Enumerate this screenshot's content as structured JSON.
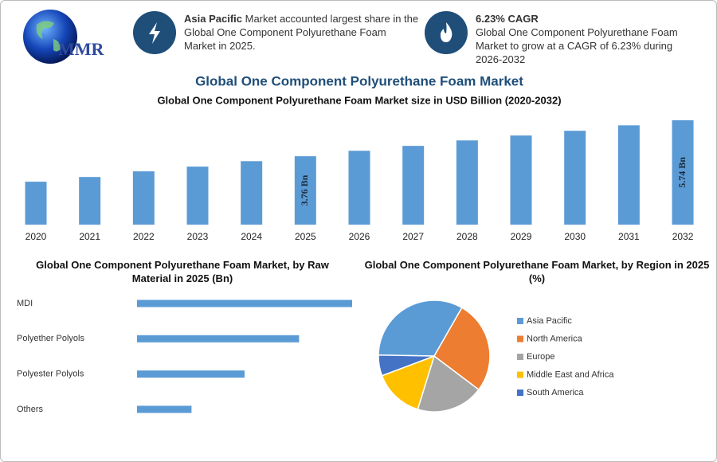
{
  "header": {
    "logo": "MMR",
    "highlight1": {
      "bold": "Asia Pacific",
      "text": " Market accounted largest share in the Global One Component Polyurethane Foam Market in 2025."
    },
    "highlight2": {
      "title": "6.23% CAGR",
      "text": "Global One Component Polyurethane Foam Market to grow at a CAGR of 6.23% during 2026-2032"
    }
  },
  "title": "Global One Component Polyurethane Foam Market",
  "chart_data": [
    {
      "type": "bar",
      "title": "Global One Component Polyurethane Foam Market size in USD Billion (2020-2032)",
      "categories": [
        "2020",
        "2021",
        "2022",
        "2023",
        "2024",
        "2025",
        "2026",
        "2027",
        "2028",
        "2029",
        "2030",
        "2031",
        "2032"
      ],
      "values": [
        2.36,
        2.62,
        2.93,
        3.19,
        3.49,
        3.76,
        4.06,
        4.33,
        4.63,
        4.9,
        5.16,
        5.46,
        5.74
      ],
      "value_labels": [
        null,
        null,
        null,
        null,
        null,
        "3.76 Bn",
        null,
        null,
        null,
        null,
        null,
        null,
        "5.74 Bn"
      ],
      "color": "#5b9bd5",
      "ylim": [
        0,
        6
      ]
    },
    {
      "type": "barh",
      "title": "Global One Component Polyurethane Foam Market, by Raw Material in 2025 (Bn)",
      "categories": [
        "MDI",
        "Polyether Polyols",
        "Polyester Polyols",
        "Others"
      ],
      "values": [
        1.5,
        1.13,
        0.75,
        0.38
      ],
      "color": "#5b9bd5",
      "xlim": [
        0,
        1.5
      ]
    },
    {
      "type": "pie",
      "title": "Global One Component Polyurethane Foam Market, by Region in 2025 (%)",
      "categories": [
        "Asia Pacific",
        "North America",
        "Europe",
        "Middle East and Africa",
        "South America"
      ],
      "values": [
        33,
        27,
        19.5,
        14.5,
        6
      ],
      "colors": [
        "#5b9bd5",
        "#ed7d31",
        "#a5a5a5",
        "#ffc000",
        "#4472c4"
      ],
      "legend": "right"
    }
  ]
}
